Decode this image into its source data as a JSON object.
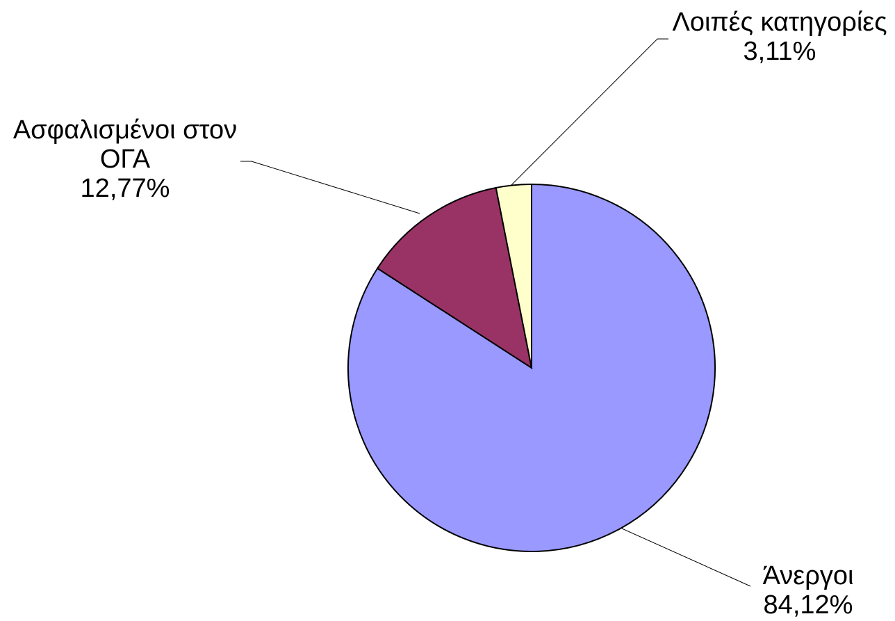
{
  "chart_data": {
    "type": "pie",
    "title": "",
    "start_angle_deg": 90,
    "direction": "clockwise",
    "legend": "none",
    "slices": [
      {
        "label_lines": [
          "Άνεργοι"
        ],
        "value": 84.12,
        "value_label": "84,12%",
        "color": "#9999FF"
      },
      {
        "label_lines": [
          "Ασφαλισμένοι στον",
          "ΟΓΑ"
        ],
        "value": 12.77,
        "value_label": "12,77%",
        "color": "#993366"
      },
      {
        "label_lines": [
          "Λοιπές κατηγορίες"
        ],
        "value": 3.11,
        "value_label": "3,11%",
        "color": "#FFFFCC"
      }
    ]
  }
}
